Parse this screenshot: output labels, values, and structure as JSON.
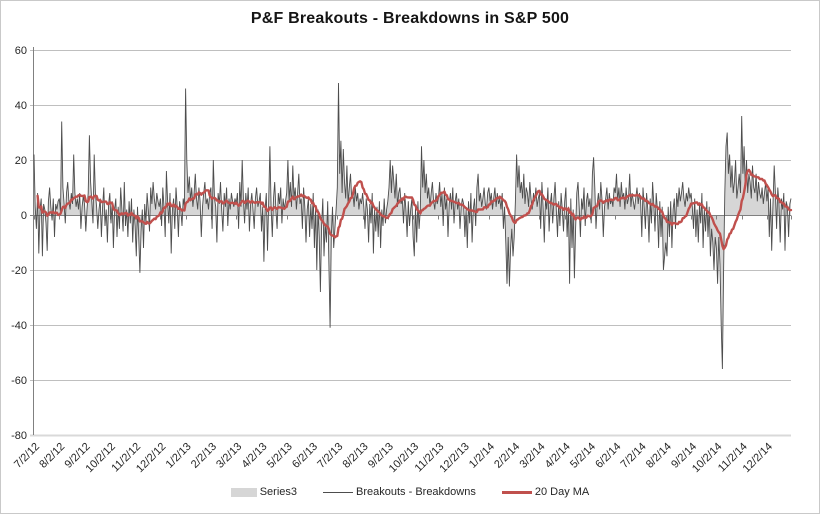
{
  "title": "P&F Breakouts - Breakdowns in S&P 500",
  "colors": {
    "area": "#d6d6d6",
    "line": "#4d4d4d",
    "ma": "#c0504d",
    "grid": "#bfbfbf",
    "grid_bottom": "#d9d9d9",
    "axis": "#808080",
    "text": "#262626",
    "frame_border": "#c9c9c9"
  },
  "legend": [
    {
      "label": "Series3"
    },
    {
      "label": "Breakouts - Breakdowns"
    },
    {
      "label": "20 Day MA"
    }
  ],
  "chart_data": {
    "type": "area",
    "title": "P&F Breakouts - Breakdowns in S&P 500",
    "xlabel": "",
    "ylabel": "",
    "ylim": [
      -80,
      60
    ],
    "y_ticks": [
      60,
      40,
      20,
      0,
      -20,
      -40,
      -60,
      -80
    ],
    "grid": "horizontal",
    "legend_position": "bottom",
    "x_labels": [
      "7/2/12",
      "8/2/12",
      "9/2/12",
      "10/2/12",
      "11/2/12",
      "12/2/12",
      "1/2/13",
      "2/2/13",
      "3/2/13",
      "4/2/13",
      "5/2/13",
      "6/2/13",
      "7/2/13",
      "8/2/13",
      "9/2/13",
      "10/2/13",
      "11/2/13",
      "12/2/13",
      "1/2/14",
      "2/2/14",
      "3/2/14",
      "4/2/14",
      "5/2/14",
      "6/2/14",
      "7/2/14",
      "8/2/14",
      "9/2/14",
      "10/2/14",
      "11/2/14",
      "12/2/14"
    ],
    "points_per_label": 21,
    "values": [
      22,
      3,
      -5,
      8,
      -14,
      2,
      6,
      -15,
      4,
      2,
      -3,
      -13,
      5,
      10,
      3,
      -2,
      6,
      -8,
      4,
      2,
      5,
      6,
      1,
      34,
      10,
      4,
      -3,
      8,
      12,
      5,
      2,
      8,
      4,
      22,
      8,
      3,
      6,
      2,
      8,
      -5,
      3,
      7,
      4,
      -6,
      2,
      8,
      29,
      12,
      5,
      -3,
      22,
      8,
      3,
      -5,
      2,
      6,
      -8,
      3,
      10,
      -4,
      2,
      -10,
      4,
      8,
      -3,
      5,
      -12,
      2,
      6,
      -8,
      3,
      -5,
      10,
      2,
      -6,
      12,
      -4,
      2,
      -8,
      5,
      -3,
      6,
      -10,
      2,
      -4,
      -15,
      3,
      -8,
      -21,
      -6,
      2,
      -12,
      4,
      -3,
      8,
      2,
      -6,
      10,
      4,
      12,
      6,
      2,
      8,
      5,
      3,
      6,
      -4,
      10,
      3,
      -8,
      16,
      5,
      -3,
      8,
      -14,
      2,
      6,
      -5,
      10,
      3,
      -8,
      5,
      2,
      -4,
      6,
      3,
      46,
      20,
      8,
      14,
      5,
      10,
      3,
      8,
      15,
      6,
      2,
      10,
      5,
      -8,
      3,
      8,
      12,
      4,
      6,
      2,
      8,
      10,
      -5,
      20,
      6,
      3,
      -10,
      8,
      4,
      12,
      2,
      -6,
      8,
      3,
      10,
      -4,
      6,
      2,
      8,
      5,
      3,
      6,
      4,
      8,
      -5,
      12,
      3,
      20,
      6,
      -3,
      8,
      2,
      10,
      -6,
      4,
      8,
      2,
      -5,
      6,
      10,
      3,
      5,
      8,
      -6,
      3,
      -17,
      2,
      8,
      -13,
      5,
      25,
      3,
      -8,
      6,
      12,
      2,
      -5,
      8,
      4,
      10,
      -3,
      6,
      2,
      5,
      8,
      20,
      5,
      12,
      3,
      18,
      6,
      10,
      2,
      8,
      15,
      4,
      6,
      -5,
      10,
      3,
      -10,
      2,
      6,
      -8,
      4,
      -5,
      8,
      -12,
      3,
      -20,
      2,
      -8,
      -28,
      -4,
      6,
      -15,
      -3,
      -10,
      5,
      -18,
      -41,
      -8,
      3,
      -12,
      -5,
      2,
      10,
      48,
      15,
      27,
      8,
      24,
      12,
      6,
      18,
      4,
      10,
      15,
      6,
      8,
      3,
      10,
      5,
      8,
      2,
      6,
      4,
      8,
      3,
      -5,
      6,
      2,
      -10,
      4,
      -3,
      8,
      -14,
      2,
      -6,
      3,
      -8,
      5,
      -12,
      2,
      -4,
      6,
      -3,
      2,
      5,
      10,
      20,
      8,
      18,
      12,
      6,
      15,
      3,
      8,
      10,
      4,
      6,
      -3,
      8,
      2,
      -8,
      5,
      -4,
      2,
      6,
      -8,
      -15,
      3,
      -10,
      5,
      -5,
      2,
      25,
      10,
      20,
      8,
      15,
      6,
      10,
      3,
      8,
      12,
      5,
      2,
      8,
      4,
      6,
      12,
      3,
      8,
      -4,
      10,
      2,
      6,
      -8,
      4,
      8,
      2,
      10,
      -3,
      5,
      8,
      2,
      6,
      -5,
      3,
      6,
      4,
      -8,
      2,
      -12,
      5,
      -3,
      8,
      -10,
      2,
      6,
      -4,
      10,
      15,
      5,
      8,
      3,
      6,
      10,
      4,
      2,
      8,
      10,
      5,
      8,
      2,
      6,
      10,
      3,
      8,
      4,
      6,
      2,
      8,
      -5,
      3,
      -10,
      -25,
      -8,
      -26,
      -12,
      -5,
      -15,
      -8,
      5,
      22,
      10,
      18,
      8,
      12,
      6,
      15,
      4,
      10,
      8,
      3,
      12,
      6,
      2,
      8,
      5,
      10,
      3,
      6,
      8,
      -5,
      12,
      3,
      -10,
      6,
      2,
      10,
      -6,
      4,
      8,
      -3,
      6,
      12,
      2,
      -8,
      5,
      -4,
      8,
      2,
      -6,
      5,
      10,
      -8,
      3,
      -25,
      6,
      -12,
      2,
      -23,
      -5,
      8,
      12,
      3,
      -8,
      6,
      2,
      10,
      -4,
      5,
      8,
      3,
      6,
      -3,
      15,
      21,
      10,
      -5,
      4,
      8,
      2,
      12,
      5,
      -8,
      3,
      6,
      10,
      2,
      8,
      4,
      6,
      3,
      10,
      8,
      15,
      5,
      10,
      3,
      12,
      6,
      8,
      2,
      10,
      4,
      6,
      15,
      3,
      8,
      5,
      2,
      6,
      10,
      4,
      8,
      5,
      -8,
      10,
      3,
      -5,
      8,
      2,
      -10,
      6,
      -3,
      12,
      4,
      -6,
      8,
      2,
      -12,
      5,
      -8,
      3,
      -20,
      -15,
      -10,
      -15,
      3,
      -8,
      5,
      -12,
      2,
      6,
      -5,
      8,
      3,
      10,
      5,
      8,
      12,
      6,
      3,
      8,
      5,
      10,
      6,
      8,
      3,
      -5,
      6,
      -8,
      2,
      -10,
      4,
      -3,
      8,
      -12,
      2,
      -6,
      5,
      -8,
      3,
      -15,
      -5,
      -10,
      -20,
      -8,
      -12,
      -25,
      -8,
      -18,
      -40,
      -56,
      -20,
      8,
      25,
      30,
      15,
      22,
      10,
      18,
      8,
      12,
      20,
      6,
      10,
      15,
      8,
      36,
      15,
      25,
      10,
      20,
      8,
      15,
      12,
      6,
      18,
      10,
      8,
      15,
      5,
      12,
      8,
      6,
      10,
      4,
      8,
      12,
      5,
      10,
      -8,
      6,
      -13,
      3,
      18,
      8,
      -5,
      10,
      4,
      -10,
      6,
      2,
      8,
      -13,
      5,
      3,
      -8,
      4,
      6
    ],
    "series": [
      {
        "name": "Series3",
        "type": "area",
        "source": "values"
      },
      {
        "name": "Breakouts - Breakdowns",
        "type": "line",
        "source": "values"
      },
      {
        "name": "20 Day MA",
        "type": "line",
        "derived": "moving_average",
        "window": 20,
        "source": "values"
      }
    ]
  }
}
